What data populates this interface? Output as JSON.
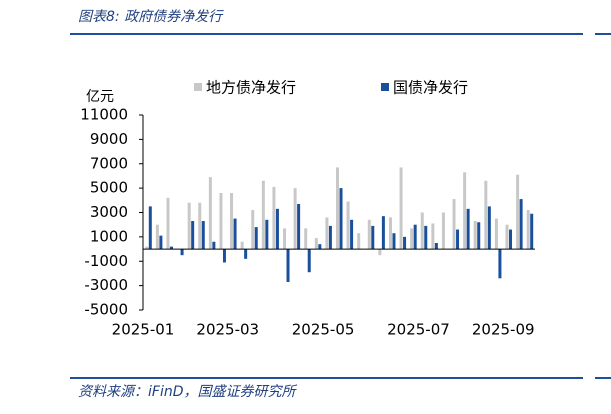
{
  "header": {
    "title": "图表8:  政府债券净发行"
  },
  "chart_data": {
    "type": "bar",
    "unit": "亿元",
    "categories": [
      "2025-01",
      null,
      null,
      null,
      null,
      null,
      null,
      null,
      "2025-03",
      null,
      null,
      null,
      null,
      null,
      null,
      null,
      null,
      "2025-05",
      null,
      null,
      null,
      null,
      null,
      null,
      null,
      null,
      "2025-07",
      null,
      null,
      null,
      null,
      null,
      null,
      null,
      "2025-09",
      null,
      null
    ],
    "series": [
      {
        "name": "地方债净发行",
        "color": "#c8c8c8",
        "values": [
          200,
          2000,
          4200,
          0,
          3800,
          3800,
          5900,
          4600,
          4600,
          600,
          3200,
          5600,
          5100,
          1700,
          5000,
          1700,
          900,
          2600,
          6700,
          3900,
          1300,
          2400,
          -500,
          2600,
          6700,
          1700,
          3000,
          2100,
          3000,
          4100,
          6300,
          2300,
          5600,
          2500,
          2000,
          6100,
          3200
        ]
      },
      {
        "name": "国债净发行",
        "color": "#1a4f9c",
        "values": [
          3500,
          1100,
          200,
          -500,
          2300,
          2300,
          600,
          -1100,
          2500,
          -800,
          1800,
          2400,
          3300,
          -2700,
          3700,
          -1900,
          400,
          1900,
          5000,
          2400,
          0,
          1900,
          2700,
          1300,
          1000,
          2000,
          1900,
          500,
          0,
          1600,
          3300,
          2200,
          3500,
          -2400,
          1600,
          4100,
          2900
        ]
      }
    ],
    "ylim": [
      -5000,
      11000
    ],
    "yticks": [
      -5000,
      -3000,
      -1000,
      1000,
      3000,
      5000,
      7000,
      9000,
      11000
    ]
  },
  "footer": {
    "source": "资料来源：iFinD，国盛证券研究所"
  }
}
